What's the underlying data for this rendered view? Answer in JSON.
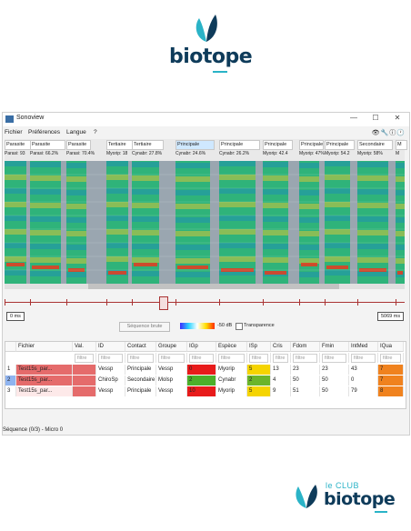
{
  "brand": {
    "top_word": "biotope",
    "bottom_prefix": "le CLUB",
    "bottom_word": "biotope",
    "teal": "#2ab3c7",
    "navy": "#0e3b5a"
  },
  "window": {
    "title": "Sonoview",
    "minimize": "—",
    "maximize": "☐",
    "close": "✕"
  },
  "menu": {
    "items": [
      "Fichier",
      "Préférences",
      "Langue",
      "?"
    ],
    "right_icons": "👁🔧ⓘ🕐"
  },
  "tags": [
    {
      "label": "Parasite",
      "stat": "Parasi: 93"
    },
    {
      "label": "Parasite",
      "stat": "Parasi: 66.2%"
    },
    {
      "label": "Parasite",
      "stat": "Parasi: 70.4%"
    },
    {
      "label": "Tertiaire",
      "stat": "Myorip: 18"
    },
    {
      "label": "Tertiaire",
      "stat": "Cynabr: 27.8%"
    },
    {
      "label": "Principale",
      "stat": "Cynabr: 24.6%"
    },
    {
      "label": "Principale",
      "stat": "Cynabr: 26.2%"
    },
    {
      "label": "Principale",
      "stat": "Myorip: 42.4"
    },
    {
      "label": "Principale",
      "stat": "Myorip: 47%"
    },
    {
      "label": "Principale",
      "stat": "Myorip: 54.2"
    },
    {
      "label": "Secondaire",
      "stat": "Myorip: 58%"
    },
    {
      "label": "M",
      "stat": "M"
    }
  ],
  "timeline": {
    "start": "0 ms",
    "end": "5069 ms"
  },
  "controls": {
    "sequence_select": "Séquence brute",
    "db_label": "-50 dB",
    "transparency_label": "Transparence"
  },
  "table": {
    "columns": [
      "",
      "Fichier",
      "Val.",
      "ID",
      "Contact",
      "Groupe",
      "IGp",
      "Espèce",
      "ISp",
      "Cris",
      "Fdom",
      "Fmin",
      "IntMed",
      "IQua"
    ],
    "filter_placeholder": "filtre",
    "rows": [
      {
        "num": "1",
        "file": "Test15s_par...",
        "val": "",
        "id": "Vessp",
        "contact": "Principale",
        "groupe": "Vessp",
        "igp": "0",
        "espece": "Myorip",
        "isp": "5",
        "cris": "13",
        "fdom": "23",
        "fmin": "23",
        "intmed": "43",
        "iqua": "7"
      },
      {
        "num": "2",
        "file": "Test15s_par...",
        "val": "",
        "id": "ChiroSp",
        "contact": "Secondaire",
        "groupe": "Molsp",
        "igp": "2",
        "espece": "Cynabr",
        "isp": "2",
        "cris": "4",
        "fdom": "50",
        "fmin": "50",
        "intmed": "0",
        "iqua": "7"
      },
      {
        "num": "3",
        "file": "Test15s_par...",
        "val": "",
        "id": "Vessp",
        "contact": "Principale",
        "groupe": "Vessp",
        "igp": "10",
        "espece": "Myorip",
        "isp": "5",
        "cris": "9",
        "fdom": "51",
        "fmin": "50",
        "intmed": "79",
        "iqua": "8"
      }
    ]
  },
  "status": "Séquence (0/3) - Micro 0",
  "colors": {
    "igp_red": "#e81b1b",
    "igp_green": "#4caf2a",
    "isp_yellow": "#f5d400",
    "isp_green": "#6bb52a",
    "iqua_orange": "#f0821e",
    "file_red": "#e56b6b",
    "file_blue": "#8fb4f0",
    "accent_red": "#a33333"
  }
}
